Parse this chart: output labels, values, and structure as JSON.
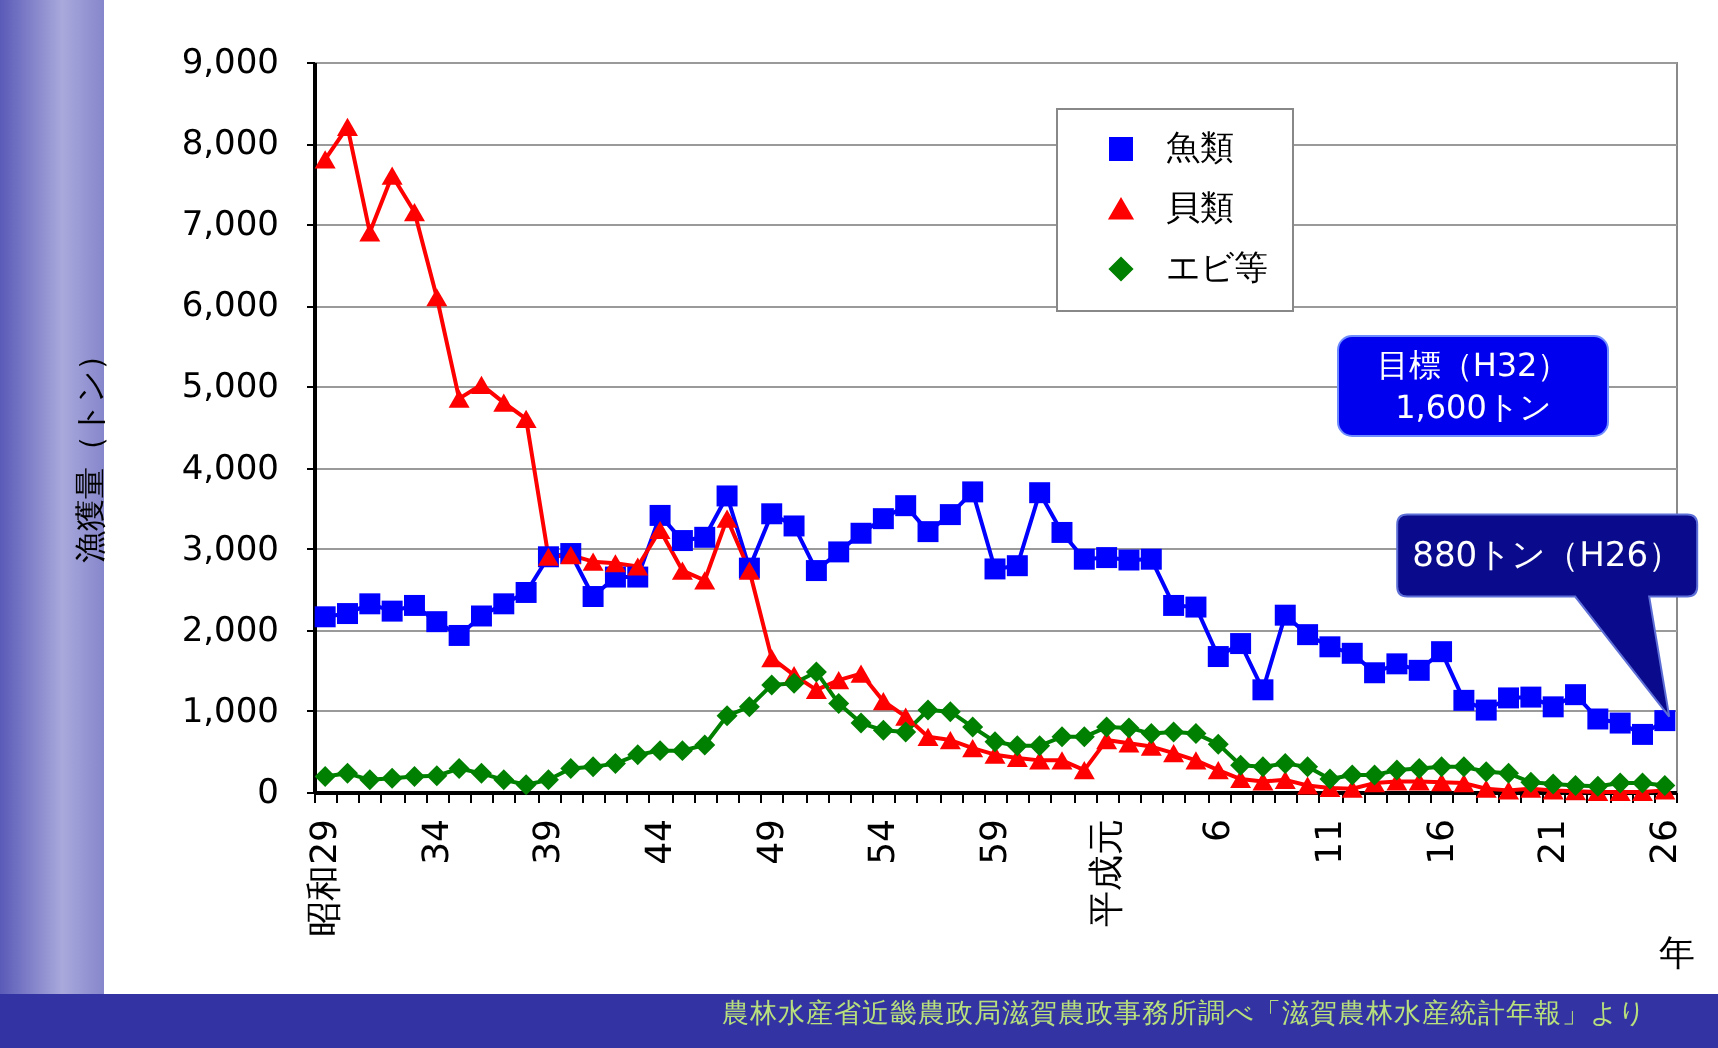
{
  "chart_data": {
    "type": "line",
    "xlabel": "年",
    "ylabel": "漁獲量（トン）",
    "categories": [
      "昭和29",
      null,
      null,
      null,
      null,
      "34",
      null,
      null,
      null,
      null,
      "39",
      null,
      null,
      null,
      null,
      "44",
      null,
      null,
      null,
      null,
      "49",
      null,
      null,
      null,
      null,
      "54",
      null,
      null,
      null,
      null,
      "59",
      null,
      null,
      null,
      null,
      "平成元",
      null,
      null,
      null,
      null,
      "6",
      null,
      null,
      null,
      null,
      "11",
      null,
      null,
      null,
      null,
      "16",
      null,
      null,
      null,
      null,
      "21",
      null,
      null,
      null,
      null,
      "26"
    ],
    "ylim": [
      0,
      9000
    ],
    "yticks": [
      0,
      {
        "value": 1000,
        "label": "1,000"
      },
      {
        "value": 2000,
        "label": "2,000"
      },
      {
        "value": 3000,
        "label": "3,000"
      },
      {
        "value": 4000,
        "label": "4,000"
      },
      {
        "value": 5000,
        "label": "5,000"
      },
      {
        "value": 6000,
        "label": "6,000"
      },
      {
        "value": 7000,
        "label": "7,000"
      },
      {
        "value": 8000,
        "label": "8,000"
      },
      {
        "value": 9000,
        "label": "9,000"
      }
    ],
    "grid": "y",
    "legend": "top",
    "series": [
      {
        "name": "魚類",
        "color": "#0000ff",
        "marker": "square",
        "values": [
          2160,
          2200,
          2320,
          2230,
          2300,
          2100,
          1930,
          2170,
          2320,
          2460,
          2900,
          2940,
          2410,
          2650,
          2650,
          3410,
          3100,
          3140,
          3650,
          2760,
          3430,
          3280,
          2730,
          2960,
          3190,
          3370,
          3530,
          3210,
          3420,
          3700,
          2750,
          2790,
          3690,
          3200,
          2870,
          2890,
          2860,
          2870,
          2300,
          2280,
          1670,
          1830,
          1260,
          2180,
          1940,
          1790,
          1710,
          1470,
          1580,
          1500,
          1730,
          1130,
          1010,
          1160,
          1170,
          1050,
          1200,
          900,
          850,
          710,
          880
        ]
      },
      {
        "name": "貝類",
        "color": "#ff0000",
        "marker": "triangle",
        "values": [
          7800,
          8200,
          6900,
          7600,
          7150,
          6100,
          4850,
          5020,
          4800,
          4600,
          2900,
          2920,
          2840,
          2820,
          2780,
          3230,
          2730,
          2610,
          3370,
          2730,
          1650,
          1440,
          1260,
          1380,
          1460,
          1120,
          930,
          680,
          640,
          540,
          460,
          420,
          390,
          390,
          270,
          640,
          600,
          560,
          480,
          390,
          270,
          160,
          130,
          150,
          80,
          50,
          40,
          110,
          130,
          130,
          120,
          110,
          40,
          20,
          40,
          20,
          10,
          0,
          0,
          0,
          20
        ]
      },
      {
        "name": "エビ等",
        "color": "#008000",
        "marker": "diamond",
        "values": [
          190,
          230,
          150,
          170,
          190,
          200,
          290,
          230,
          150,
          90,
          150,
          290,
          310,
          350,
          460,
          510,
          510,
          580,
          940,
          1050,
          1320,
          1340,
          1480,
          1090,
          850,
          760,
          740,
          1010,
          990,
          800,
          620,
          570,
          570,
          680,
          680,
          800,
          790,
          720,
          740,
          720,
          590,
          330,
          310,
          350,
          310,
          160,
          210,
          210,
          270,
          290,
          310,
          310,
          250,
          230,
          120,
          100,
          80,
          70,
          110,
          110,
          80
        ]
      }
    ],
    "annotations": [
      "目標（H32）\n1,600トン",
      "880トン（H26）",
      "農林水産省近畿農政局滋賀農政事務所調べ「滋賀農林水産統計年報」より"
    ]
  }
}
